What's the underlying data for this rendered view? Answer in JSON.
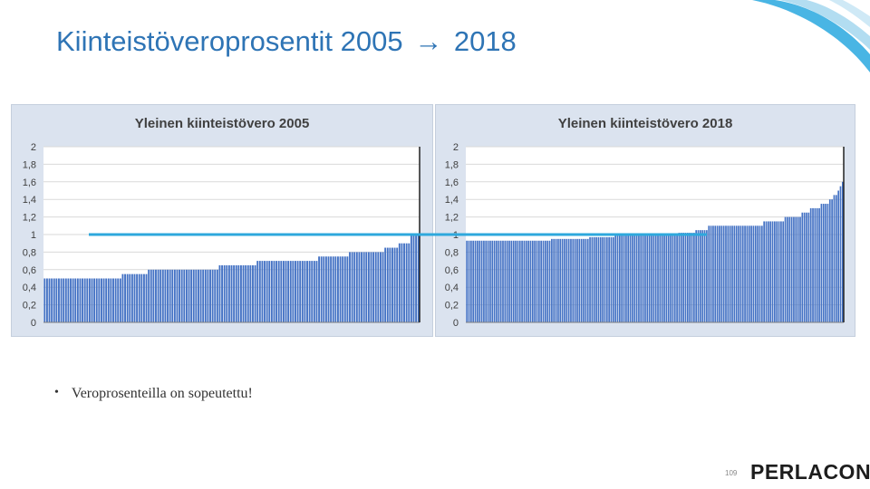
{
  "slide": {
    "title_left": "Kiinteistöveroprosentit 2005",
    "title_arrow": "→",
    "title_right": "2018",
    "bullet_text": "Veroprosenteilla on sopeutettu!",
    "page_number": "109",
    "logo_text": "PERLACON"
  },
  "colors": {
    "title": "#2e74b5",
    "bars": "#4472c4",
    "reference_line": "#2ea8dc",
    "panel_bg": "#dbe3ef"
  },
  "chart_data": [
    {
      "type": "bar",
      "title": "Yleinen kiinteistövero 2005",
      "ylim": [
        0,
        2
      ],
      "yticks": [
        "0",
        "0,2",
        "0,4",
        "0,6",
        "0,8",
        "1",
        "1,2",
        "1,4",
        "1,6",
        "1,8",
        "2"
      ],
      "bar_groups": [
        {
          "value": 0.5,
          "count": 33
        },
        {
          "value": 0.55,
          "count": 11
        },
        {
          "value": 0.6,
          "count": 30
        },
        {
          "value": 0.65,
          "count": 16
        },
        {
          "value": 0.7,
          "count": 26
        },
        {
          "value": 0.75,
          "count": 13
        },
        {
          "value": 0.8,
          "count": 15
        },
        {
          "value": 0.85,
          "count": 6
        },
        {
          "value": 0.9,
          "count": 5
        },
        {
          "value": 1.0,
          "count": 4
        }
      ]
    },
    {
      "type": "bar",
      "title": "Yleinen kiinteistövero 2018",
      "ylim": [
        0,
        2
      ],
      "yticks": [
        "0",
        "0,2",
        "0,4",
        "0,6",
        "0,8",
        "1",
        "1,2",
        "1,4",
        "1,6",
        "1,8",
        "2"
      ],
      "bar_groups": [
        {
          "value": 0.93,
          "count": 40
        },
        {
          "value": 0.95,
          "count": 18
        },
        {
          "value": 0.97,
          "count": 12
        },
        {
          "value": 1.0,
          "count": 30
        },
        {
          "value": 1.02,
          "count": 8
        },
        {
          "value": 1.05,
          "count": 6
        },
        {
          "value": 1.1,
          "count": 26
        },
        {
          "value": 1.15,
          "count": 10
        },
        {
          "value": 1.2,
          "count": 8
        },
        {
          "value": 1.25,
          "count": 4
        },
        {
          "value": 1.3,
          "count": 5
        },
        {
          "value": 1.35,
          "count": 4
        },
        {
          "value": 1.4,
          "count": 2
        },
        {
          "value": 1.45,
          "count": 2
        },
        {
          "value": 1.5,
          "count": 1
        },
        {
          "value": 1.55,
          "count": 1
        },
        {
          "value": 1.6,
          "count": 1
        }
      ],
      "reference_line": {
        "value": 1.0
      }
    }
  ]
}
